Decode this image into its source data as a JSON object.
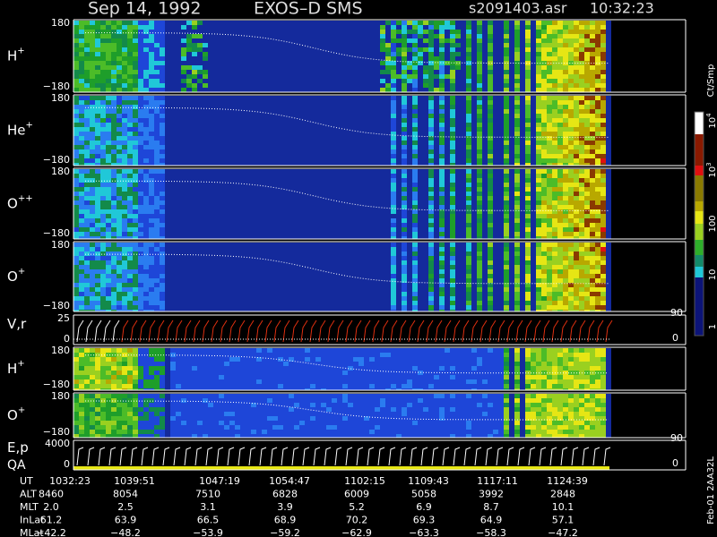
{
  "header": {
    "date": "Sep 14, 1992",
    "instrument": "EXOS–D SMS",
    "file": "s2091403.asr",
    "time": "10:32:23"
  },
  "panels": [
    {
      "label": "H",
      "sup": "+",
      "top": "180",
      "bottom": "−180"
    },
    {
      "label": "He",
      "sup": "+",
      "top": "180",
      "bottom": "−180"
    },
    {
      "label": "O",
      "sup": "++",
      "top": "180",
      "bottom": "−180"
    },
    {
      "label": "O",
      "sup": "+",
      "top": "180",
      "bottom": "−180"
    },
    {
      "label": "V,r",
      "top": "25",
      "bottom": "0",
      "right_top": "90",
      "right_bottom": "0"
    },
    {
      "label": "H",
      "sup": "+",
      "top": "180",
      "bottom": "−180"
    },
    {
      "label": "O",
      "sup": "+",
      "top": "180",
      "bottom": "−180"
    },
    {
      "label": "E,p",
      "label2": "QA",
      "top": "4000",
      "bottom": "0",
      "right_top": "90",
      "right_bottom": "0"
    }
  ],
  "colorbar": {
    "unit": "Ct/Smp",
    "ticks": [
      {
        "base": "10",
        "exp": "4"
      },
      {
        "base": "10",
        "exp": "3"
      },
      {
        "base": "100"
      },
      {
        "base": "10"
      },
      {
        "base": "1"
      }
    ]
  },
  "footer": {
    "rows": [
      {
        "label": "UT",
        "values": [
          "1032:23",
          "1039:51",
          "1047:19",
          "1054:47",
          "1102:15",
          "1109:43",
          "1117:11",
          "1124:39"
        ]
      },
      {
        "label": "ALT",
        "values": [
          "8460",
          "8054",
          "7510",
          "6828",
          "6009",
          "5058",
          "3992",
          "2848"
        ]
      },
      {
        "label": "MLT",
        "values": [
          "2.0",
          "2.5",
          "3.1",
          "3.9",
          "5.2",
          "6.9",
          "8.7",
          "10.1"
        ]
      },
      {
        "label": "InLat",
        "values": [
          "61.2",
          "63.9",
          "66.5",
          "68.9",
          "70.2",
          "69.3",
          "64.9",
          "57.1"
        ]
      },
      {
        "label": "MLat",
        "values": [
          "−42.2",
          "−48.2",
          "−53.9",
          "−59.2",
          "−62.9",
          "−63.3",
          "−58.3",
          "−47.2"
        ]
      }
    ]
  },
  "stamp": "Feb-01 2AA32L"
}
